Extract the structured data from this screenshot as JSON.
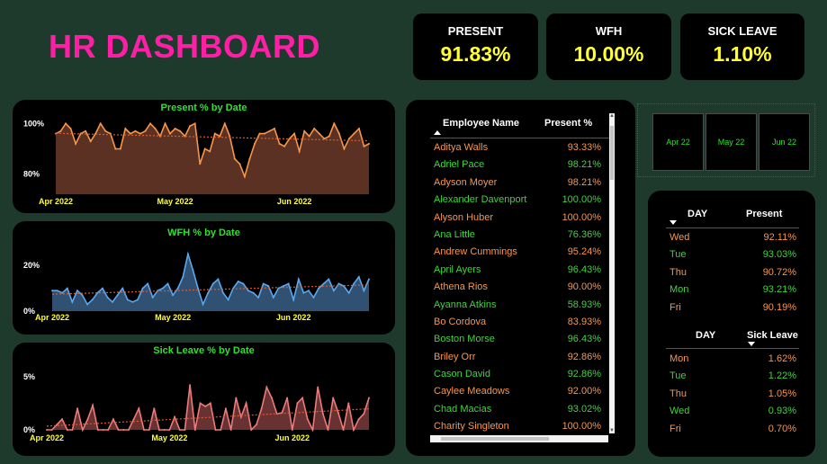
{
  "title": "HR DASHBOARD",
  "kpis": [
    {
      "label": "PRESENT",
      "value": "91.83%"
    },
    {
      "label": "WFH",
      "value": "10.00%"
    },
    {
      "label": "SICK LEAVE",
      "value": "1.10%"
    }
  ],
  "colors": {
    "title": "#ff1fa7",
    "kpi_value": "#ffff33",
    "chart_title": "#2fe02f",
    "present_fill": "#6b3a2a",
    "present_line": "#f8964a",
    "wfh_fill": "#3a5f86",
    "wfh_line": "#5aa9f0",
    "sick_fill": "#7a3b3b",
    "sick_line": "#ef7a7a",
    "trend": "#e05a30"
  },
  "chart_data": [
    {
      "type": "area",
      "title": "Present % by Date",
      "y_tick_labels": [
        "100%",
        "80%"
      ],
      "y_ticks": [
        100,
        80
      ],
      "ylim": [
        72,
        103
      ],
      "x_tick_labels": [
        "Apr 2022",
        "May 2022",
        "Jun 2022"
      ],
      "x_tick_index": [
        0,
        24,
        48
      ],
      "trend_line": true,
      "values": [
        96,
        97,
        100,
        98,
        92,
        96,
        97,
        93,
        96,
        100,
        97,
        96,
        90,
        90,
        98,
        96,
        97,
        96,
        97,
        100,
        98,
        95,
        100,
        96,
        98,
        97,
        95,
        99,
        100,
        84,
        90,
        89,
        96,
        95,
        100,
        95,
        86,
        84,
        79,
        86,
        92,
        96,
        96,
        97,
        98,
        92,
        91,
        94,
        96,
        89,
        97,
        95,
        98,
        96,
        94,
        95,
        100,
        96,
        90,
        94,
        96,
        98,
        91,
        92
      ]
    },
    {
      "type": "area",
      "title": "WFH % by Date",
      "y_tick_labels": [
        "20%",
        "0%"
      ],
      "y_ticks": [
        20,
        0
      ],
      "ylim": [
        0,
        26
      ],
      "x_tick_labels": [
        "Apr 2022",
        "May 2022",
        "Jun 2022"
      ],
      "x_tick_index": [
        0,
        24,
        48
      ],
      "trend_line": true,
      "values": [
        9,
        9,
        8,
        10,
        4,
        9,
        7,
        3,
        5,
        8,
        10,
        6,
        4,
        7,
        10,
        5,
        4,
        5,
        10,
        12,
        6,
        9,
        10,
        12,
        7,
        10,
        15,
        25,
        18,
        10,
        3,
        8,
        12,
        14,
        8,
        5,
        10,
        13,
        12,
        9,
        8,
        6,
        12,
        11,
        6,
        10,
        11,
        12,
        5,
        14,
        8,
        9,
        6,
        10,
        12,
        14,
        9,
        12,
        11,
        8,
        12,
        15,
        9,
        14
      ]
    },
    {
      "type": "area",
      "title": "Sick Leave % by Date",
      "y_tick_labels": [
        "5%",
        "0%"
      ],
      "y_ticks": [
        5,
        0
      ],
      "ylim": [
        0,
        6.5
      ],
      "x_tick_labels": [
        "Apr 2022",
        "May 2022",
        "Jun 2022"
      ],
      "x_tick_index": [
        0,
        24,
        48
      ],
      "trend_line": true,
      "values": [
        0,
        0,
        0.5,
        1,
        0,
        0,
        2,
        0,
        1,
        2.3,
        0,
        0,
        0,
        1,
        0,
        0,
        0,
        1,
        2,
        0,
        0,
        2,
        0,
        0,
        0,
        1.2,
        0,
        0,
        4.2,
        0,
        2.5,
        2.2,
        2.5,
        0,
        0,
        2,
        0,
        3,
        1.2,
        2.5,
        0,
        0.5,
        2,
        4,
        3,
        1.5,
        1.6,
        3,
        0,
        2.5,
        3,
        1,
        0,
        4,
        1.5,
        0,
        3,
        1.6,
        0,
        2.5,
        0,
        1,
        1.5,
        3
      ]
    }
  ],
  "employee_table": {
    "headers": {
      "name": "Employee Name",
      "present": "Present %"
    },
    "rows": [
      {
        "name": "Aditya Walls",
        "present": "93.33%"
      },
      {
        "name": "Adriel Pace",
        "present": "98.21%"
      },
      {
        "name": "Adyson Moyer",
        "present": "98.21%"
      },
      {
        "name": "Alexander Davenport",
        "present": "100.00%"
      },
      {
        "name": "Alyson Huber",
        "present": "100.00%"
      },
      {
        "name": "Ana Little",
        "present": "76.36%"
      },
      {
        "name": "Andrew Cummings",
        "present": "95.24%"
      },
      {
        "name": "April Ayers",
        "present": "96.43%"
      },
      {
        "name": "Athena Rios",
        "present": "90.00%"
      },
      {
        "name": "Ayanna Atkins",
        "present": "58.93%"
      },
      {
        "name": "Bo Cordova",
        "present": "83.93%"
      },
      {
        "name": "Boston Morse",
        "present": "96.43%"
      },
      {
        "name": "Briley Orr",
        "present": "92.86%"
      },
      {
        "name": "Cason David",
        "present": "92.86%"
      },
      {
        "name": "Caylee Meadows",
        "present": "92.00%"
      },
      {
        "name": "Chad Macias",
        "present": "93.02%"
      },
      {
        "name": "Charity Singleton",
        "present": "100.00%"
      }
    ]
  },
  "month_slicer": [
    "Apr 22",
    "May 22",
    "Jun 22"
  ],
  "present_by_day": {
    "headers": {
      "day": "DAY",
      "value": "Present"
    },
    "rows": [
      {
        "day": "Wed",
        "value": "92.11%"
      },
      {
        "day": "Tue",
        "value": "93.03%"
      },
      {
        "day": "Thu",
        "value": "90.72%"
      },
      {
        "day": "Mon",
        "value": "93.21%"
      },
      {
        "day": "Fri",
        "value": "90.19%"
      }
    ]
  },
  "sick_by_day": {
    "headers": {
      "day": "DAY",
      "value": "Sick Leave"
    },
    "rows": [
      {
        "day": "Mon",
        "value": "1.62%"
      },
      {
        "day": "Tue",
        "value": "1.22%"
      },
      {
        "day": "Thu",
        "value": "1.05%"
      },
      {
        "day": "Wed",
        "value": "0.93%"
      },
      {
        "day": "Fri",
        "value": "0.70%"
      }
    ]
  }
}
